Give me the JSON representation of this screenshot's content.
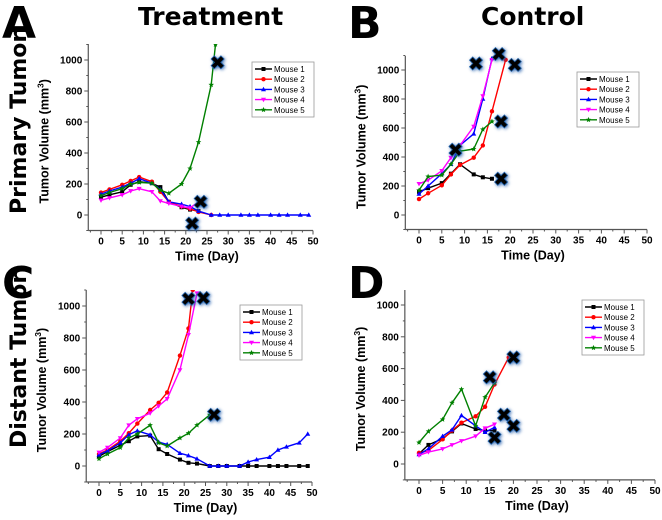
{
  "figure": {
    "column_titles": [
      "Treatment",
      "Control"
    ],
    "row_titles": [
      "Primary Tumor",
      "Distant Tumor"
    ],
    "panel_letters": [
      "A",
      "B",
      "C",
      "D"
    ]
  },
  "series_style": [
    {
      "name": "Mouse 1",
      "color": "#000000",
      "marker": "square"
    },
    {
      "name": "Mouse 2",
      "color": "#ff0000",
      "marker": "circle"
    },
    {
      "name": "Mouse 3",
      "color": "#0000ff",
      "marker": "triangle-up"
    },
    {
      "name": "Mouse 4",
      "color": "#ff00ff",
      "marker": "triangle-down"
    },
    {
      "name": "Mouse 5",
      "color": "#008000",
      "marker": "star"
    }
  ],
  "chart_data": [
    {
      "panel": "A",
      "type": "line",
      "title": "Treatment",
      "row_label": "Primary Tumor",
      "xlabel": "Time (Day)",
      "ylabel": "Tumor Volume (mm3)",
      "xlim": [
        -3,
        50
      ],
      "ylim": [
        -100,
        1100
      ],
      "xticks": [
        0,
        5,
        10,
        15,
        20,
        25,
        30,
        35,
        40,
        45,
        50
      ],
      "yticks": [
        0,
        200,
        400,
        600,
        800,
        1000
      ],
      "legend": "top-right",
      "series": [
        {
          "name": "Mouse 1",
          "x": [
            0,
            2,
            5,
            7,
            9,
            12,
            14,
            16,
            19,
            21,
            23
          ],
          "y": [
            115,
            130,
            150,
            195,
            215,
            205,
            180,
            85,
            50,
            35,
            25
          ]
        },
        {
          "name": "Mouse 2",
          "x": [
            0,
            2,
            5,
            7,
            9,
            12,
            14,
            16,
            19,
            21,
            23,
            26
          ],
          "y": [
            145,
            165,
            195,
            220,
            245,
            215,
            150,
            85,
            55,
            40,
            20,
            0
          ]
        },
        {
          "name": "Mouse 3",
          "x": [
            0,
            2,
            5,
            7,
            9,
            12,
            14,
            16,
            19,
            21,
            23,
            26,
            28,
            30,
            33,
            35,
            37,
            40,
            42,
            44,
            47,
            49
          ],
          "y": [
            135,
            155,
            180,
            205,
            235,
            205,
            165,
            85,
            70,
            55,
            25,
            0,
            0,
            0,
            0,
            0,
            0,
            0,
            0,
            0,
            0,
            0
          ]
        },
        {
          "name": "Mouse 4",
          "x": [
            0,
            2,
            5,
            7,
            9,
            12,
            14,
            16,
            19,
            21,
            23
          ],
          "y": [
            95,
            110,
            130,
            155,
            170,
            150,
            90,
            75,
            55,
            45,
            85
          ]
        },
        {
          "name": "Mouse 5",
          "x": [
            0,
            2,
            5,
            7,
            9,
            12,
            14,
            16,
            19,
            21,
            23,
            26,
            27
          ],
          "y": [
            125,
            145,
            170,
            200,
            210,
            205,
            160,
            140,
            200,
            300,
            470,
            840,
            1100
          ]
        }
      ],
      "death_markers": [
        {
          "x": 27.5,
          "y": 985
        },
        {
          "x": 23.5,
          "y": 85
        },
        {
          "x": 21.5,
          "y": -55
        }
      ]
    },
    {
      "panel": "B",
      "type": "line",
      "title": "Control",
      "row_label": "Primary Tumor",
      "xlabel": "Time (Day)",
      "ylabel": "Tumor Volume (mm3)",
      "xlim": [
        -3,
        50
      ],
      "ylim": [
        -100,
        1100
      ],
      "xticks": [
        0,
        5,
        10,
        15,
        20,
        25,
        30,
        35,
        40,
        45,
        50
      ],
      "yticks": [
        0,
        200,
        400,
        600,
        800,
        1000
      ],
      "legend": "top-right",
      "series": [
        {
          "name": "Mouse 1",
          "x": [
            0,
            2,
            5,
            7,
            9,
            12,
            14,
            16
          ],
          "y": [
            160,
            185,
            220,
            285,
            350,
            280,
            260,
            250
          ]
        },
        {
          "name": "Mouse 2",
          "x": [
            0,
            2,
            5,
            7,
            9,
            12,
            14,
            16,
            19
          ],
          "y": [
            110,
            150,
            205,
            280,
            345,
            395,
            480,
            715,
            1070
          ]
        },
        {
          "name": "Mouse 3",
          "x": [
            0,
            2,
            5,
            7,
            9,
            12,
            14,
            16
          ],
          "y": [
            145,
            200,
            285,
            350,
            480,
            560,
            800,
            1080
          ]
        },
        {
          "name": "Mouse 4",
          "x": [
            0,
            2,
            5,
            7,
            9,
            12,
            14,
            16
          ],
          "y": [
            215,
            240,
            305,
            395,
            480,
            610,
            820,
            1070
          ]
        },
        {
          "name": "Mouse 5",
          "x": [
            0,
            2,
            5,
            7,
            9,
            12,
            14,
            16
          ],
          "y": [
            170,
            265,
            275,
            350,
            440,
            455,
            590,
            645
          ]
        }
      ],
      "death_markers": [
        {
          "x": 12.5,
          "y": 1045
        },
        {
          "x": 17.5,
          "y": 1110
        },
        {
          "x": 21,
          "y": 1035
        },
        {
          "x": 18,
          "y": 645
        },
        {
          "x": 8,
          "y": 450
        },
        {
          "x": 18,
          "y": 250
        }
      ]
    },
    {
      "panel": "C",
      "type": "line",
      "title": "",
      "row_label": "Distant Tumor",
      "xlabel": "Time (Day)",
      "ylabel": "Tumor Volume (mm3)",
      "xlim": [
        -3,
        50
      ],
      "ylim": [
        -100,
        1100
      ],
      "xticks": [
        0,
        5,
        10,
        15,
        20,
        25,
        30,
        35,
        40,
        45,
        50
      ],
      "yticks": [
        0,
        200,
        400,
        600,
        800,
        1000
      ],
      "legend": "top-right",
      "series": [
        {
          "name": "Mouse 1",
          "x": [
            0,
            2,
            5,
            7,
            9,
            12,
            14,
            16,
            19,
            21,
            23,
            26,
            28,
            30,
            33,
            35,
            37,
            40,
            42,
            44,
            47,
            49
          ],
          "y": [
            60,
            90,
            130,
            155,
            185,
            190,
            105,
            75,
            40,
            20,
            15,
            0,
            0,
            0,
            0,
            0,
            0,
            0,
            0,
            0,
            0,
            0
          ]
        },
        {
          "name": "Mouse 2",
          "x": [
            0,
            2,
            5,
            7,
            9,
            12,
            14,
            16,
            19,
            21,
            22
          ],
          "y": [
            75,
            100,
            155,
            205,
            265,
            350,
            395,
            460,
            690,
            860,
            1100
          ]
        },
        {
          "name": "Mouse 3",
          "x": [
            0,
            2,
            5,
            7,
            9,
            12,
            14,
            16,
            19,
            21,
            23,
            26,
            28,
            30,
            33,
            35,
            37,
            40,
            42,
            44,
            47,
            49
          ],
          "y": [
            70,
            95,
            145,
            195,
            220,
            195,
            150,
            135,
            80,
            65,
            45,
            0,
            0,
            0,
            0,
            25,
            40,
            55,
            100,
            120,
            145,
            200
          ]
        },
        {
          "name": "Mouse 4",
          "x": [
            0,
            2,
            5,
            7,
            9,
            12,
            14,
            16,
            19,
            21,
            23
          ],
          "y": [
            85,
            115,
            175,
            255,
            295,
            330,
            375,
            420,
            600,
            820,
            1080
          ]
        },
        {
          "name": "Mouse 5",
          "x": [
            0,
            2,
            5,
            7,
            9,
            12,
            14,
            16,
            19,
            21,
            23,
            26
          ],
          "y": [
            45,
            75,
            115,
            175,
            200,
            255,
            145,
            125,
            175,
            205,
            255,
            320
          ]
        }
      ],
      "death_markers": [
        {
          "x": 21,
          "y": 1045
        },
        {
          "x": 24.5,
          "y": 1050
        },
        {
          "x": 27,
          "y": 320
        }
      ]
    },
    {
      "panel": "D",
      "type": "line",
      "title": "",
      "row_label": "Distant Tumor",
      "xlabel": "Time (Day)",
      "ylabel": "Tumor Volume (mm3)",
      "xlim": [
        -3,
        50
      ],
      "ylim": [
        -100,
        1100
      ],
      "xticks": [
        0,
        5,
        10,
        15,
        20,
        25,
        30,
        35,
        40,
        45,
        50
      ],
      "yticks": [
        0,
        200,
        400,
        600,
        800,
        1000
      ],
      "legend": "top-right",
      "series": [
        {
          "name": "Mouse 1",
          "x": [
            0,
            2,
            5,
            7,
            9,
            12,
            14,
            16
          ],
          "y": [
            65,
            120,
            160,
            205,
            255,
            220,
            210,
            210
          ]
        },
        {
          "name": "Mouse 2",
          "x": [
            0,
            2,
            5,
            7,
            9,
            12,
            14,
            16,
            19
          ],
          "y": [
            70,
            85,
            155,
            210,
            260,
            300,
            360,
            500,
            670
          ]
        },
        {
          "name": "Mouse 3",
          "x": [
            0,
            2,
            5,
            7,
            9,
            12,
            14,
            16
          ],
          "y": [
            60,
            95,
            175,
            215,
            305,
            240,
            200,
            230
          ]
        },
        {
          "name": "Mouse 4",
          "x": [
            0,
            2,
            5,
            7,
            9,
            12,
            14,
            16
          ],
          "y": [
            55,
            75,
            95,
            120,
            145,
            175,
            225,
            250
          ]
        },
        {
          "name": "Mouse 5",
          "x": [
            0,
            2,
            5,
            7,
            9,
            12,
            14,
            16
          ],
          "y": [
            135,
            205,
            280,
            385,
            470,
            240,
            420,
            510
          ]
        }
      ],
      "death_markers": [
        {
          "x": 15,
          "y": 545
        },
        {
          "x": 20,
          "y": 670
        },
        {
          "x": 18,
          "y": 310
        },
        {
          "x": 20,
          "y": 240
        },
        {
          "x": 16,
          "y": 165
        }
      ]
    }
  ]
}
